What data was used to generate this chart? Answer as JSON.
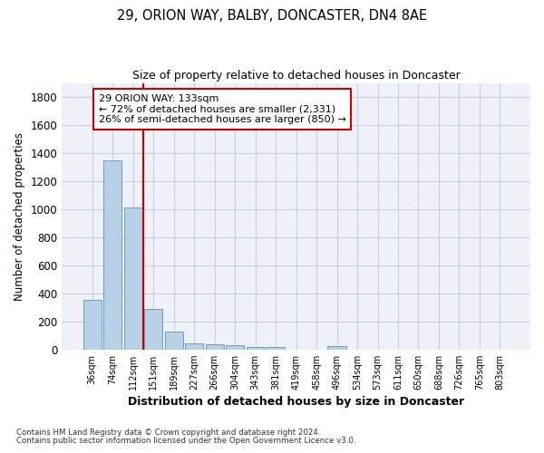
{
  "title1": "29, ORION WAY, BALBY, DONCASTER, DN4 8AE",
  "title2": "Size of property relative to detached houses in Doncaster",
  "xlabel": "Distribution of detached houses by size in Doncaster",
  "ylabel": "Number of detached properties",
  "bar_labels": [
    "36sqm",
    "74sqm",
    "112sqm",
    "151sqm",
    "189sqm",
    "227sqm",
    "266sqm",
    "304sqm",
    "343sqm",
    "381sqm",
    "419sqm",
    "458sqm",
    "496sqm",
    "534sqm",
    "573sqm",
    "611sqm",
    "650sqm",
    "688sqm",
    "726sqm",
    "765sqm",
    "803sqm"
  ],
  "bar_values": [
    355,
    1350,
    1010,
    290,
    130,
    42,
    35,
    28,
    20,
    15,
    0,
    0,
    25,
    0,
    0,
    0,
    0,
    0,
    0,
    0,
    0
  ],
  "bar_color": "#b8cfe8",
  "bar_edge_color": "#6a9ec5",
  "ylim": [
    0,
    1900
  ],
  "yticks": [
    0,
    200,
    400,
    600,
    800,
    1000,
    1200,
    1400,
    1600,
    1800
  ],
  "vline_x_idx": 2,
  "vline_color": "#cc0000",
  "ann_line1": "29 ORION WAY: 133sqm",
  "ann_line2": "← 72% of detached houses are smaller (2,331)",
  "ann_line3": "26% of semi-detached houses are larger (850) →",
  "annotation_box_color": "#cc0000",
  "footer1": "Contains HM Land Registry data © Crown copyright and database right 2024.",
  "footer2": "Contains public sector information licensed under the Open Government Licence v3.0.",
  "background_color": "#eef2f8",
  "grid_color": "#c8d0de"
}
